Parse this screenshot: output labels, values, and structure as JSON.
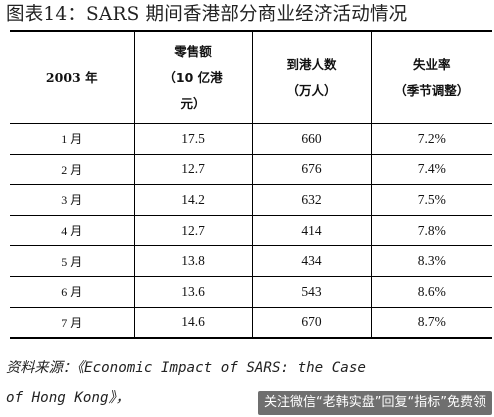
{
  "title": "图表14：SARS 期间香港部分商业经济活动情况",
  "table": {
    "headers": {
      "year": "2003 年",
      "retail_line1": "零售额",
      "retail_line2": "（10 亿港",
      "retail_line3": "元）",
      "visitors_line1": "到港人数",
      "visitors_line2": "（万人）",
      "unemployment_line1": "失业率",
      "unemployment_line2": "（季节调整）"
    },
    "rows": [
      {
        "month": "1 月",
        "retail": "17.5",
        "visitors": "660",
        "unemployment": "7.2%"
      },
      {
        "month": "2 月",
        "retail": "12.7",
        "visitors": "676",
        "unemployment": "7.4%"
      },
      {
        "month": "3 月",
        "retail": "14.2",
        "visitors": "632",
        "unemployment": "7.5%"
      },
      {
        "month": "4 月",
        "retail": "12.7",
        "visitors": "414",
        "unemployment": "7.8%"
      },
      {
        "month": "5 月",
        "retail": "13.8",
        "visitors": "434",
        "unemployment": "8.3%"
      },
      {
        "month": "6 月",
        "retail": "13.6",
        "visitors": "543",
        "unemployment": "8.6%"
      },
      {
        "month": "7 月",
        "retail": "14.6",
        "visitors": "670",
        "unemployment": "8.7%"
      }
    ]
  },
  "source": {
    "line1": "资料来源：《Economic Impact of SARS: the Case",
    "line2": "of Hong Kong》，"
  },
  "watermark": "关注微信“老韩实盘”回复“指标”免费领"
}
